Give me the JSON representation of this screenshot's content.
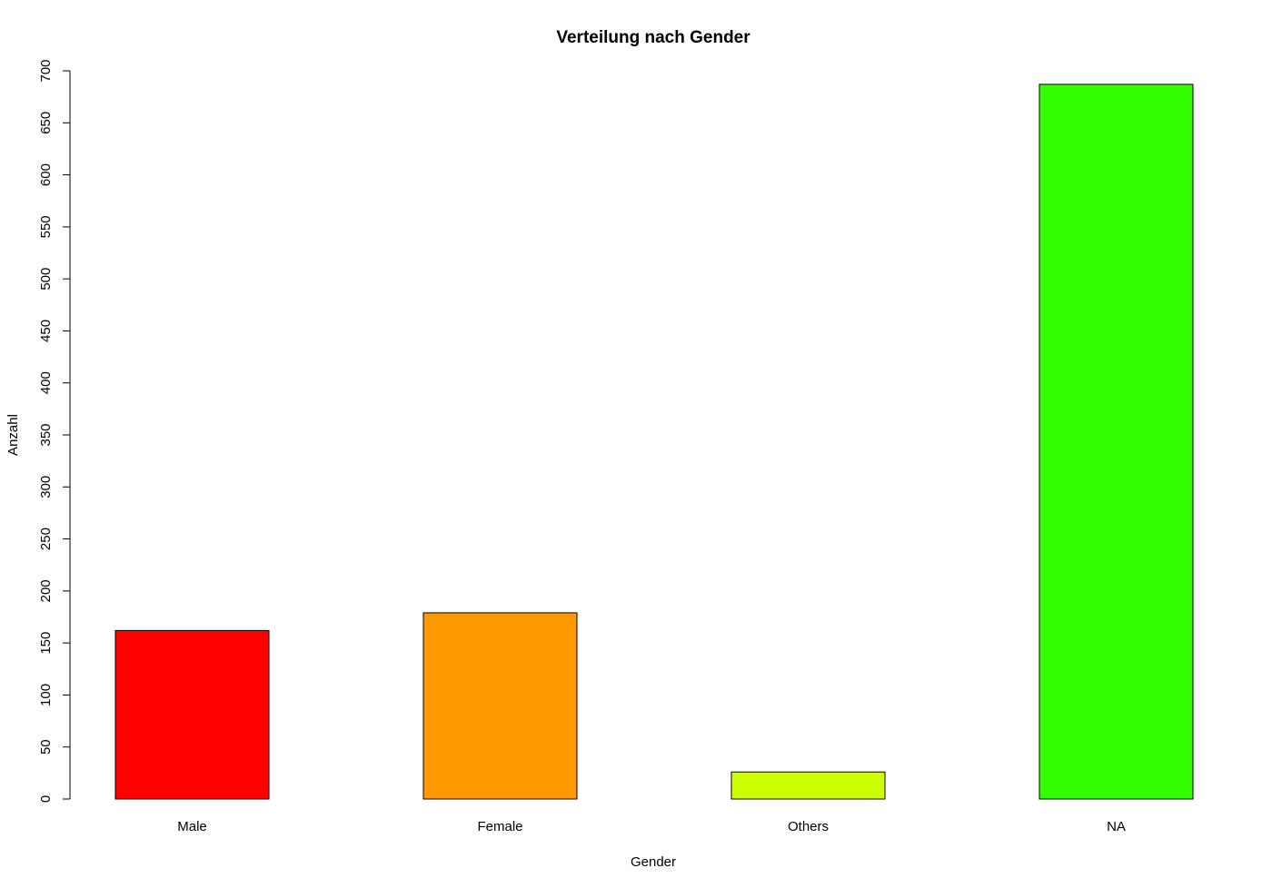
{
  "chart_data": {
    "type": "bar",
    "title": "Verteilung nach Gender",
    "xlabel": "Gender",
    "ylabel": "Anzahl",
    "categories": [
      "Male",
      "Female",
      "Others",
      "NA"
    ],
    "values": [
      162,
      179,
      26,
      687
    ],
    "colors": [
      "#FF0000",
      "#FF9900",
      "#CCFF00",
      "#33FF00"
    ],
    "ylim": [
      0,
      700
    ],
    "yticks": [
      "0",
      "50",
      "100",
      "150",
      "200",
      "250",
      "300",
      "350",
      "400",
      "450",
      "500",
      "550",
      "600",
      "650",
      "700"
    ],
    "grid": false,
    "legend": "none"
  }
}
